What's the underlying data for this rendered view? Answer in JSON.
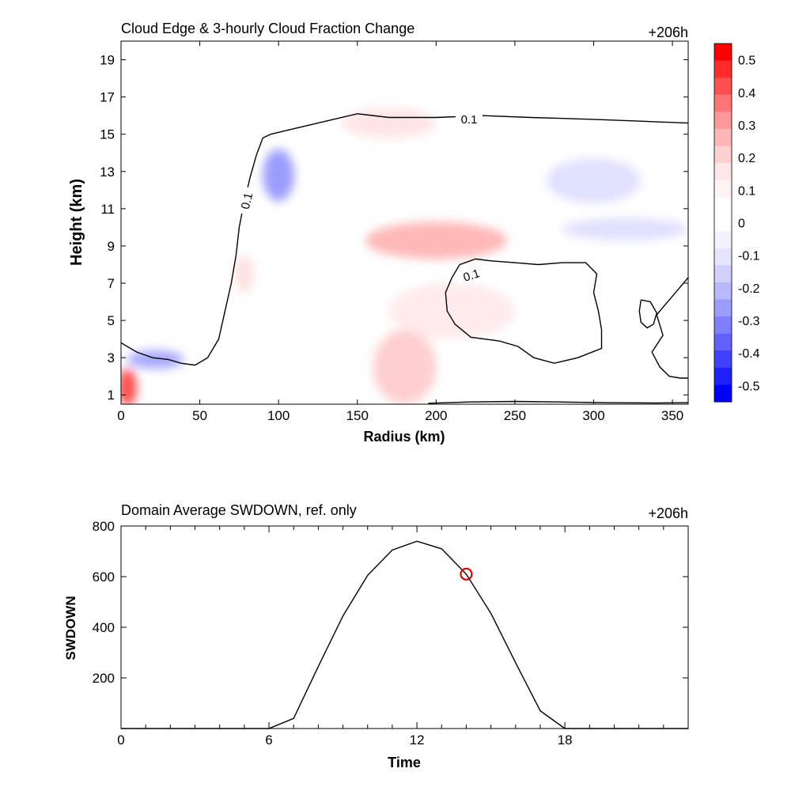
{
  "chart_data": [
    {
      "type": "heatmap",
      "title": "Cloud Edge & 3-hourly Cloud Fraction Change",
      "time_label": "+206h",
      "xlabel": "Radius (km)",
      "ylabel": "Height (km)",
      "xlim": [
        0,
        360
      ],
      "ylim": [
        0.5,
        20
      ],
      "xticks": [
        "0",
        "50",
        "100",
        "150",
        "200",
        "250",
        "300",
        "350"
      ],
      "xtick_values": [
        0,
        50,
        100,
        150,
        200,
        250,
        300,
        350
      ],
      "yticks": [
        "1",
        "3",
        "5",
        "7",
        "9",
        "11",
        "13",
        "15",
        "17",
        "19"
      ],
      "ytick_values": [
        1,
        3,
        5,
        7,
        9,
        11,
        13,
        15,
        17,
        19
      ],
      "colorbar": {
        "labels": [
          "0.5",
          "0.4",
          "0.3",
          "0.2",
          "0.1",
          "0",
          "-0.1",
          "-0.2",
          "-0.3",
          "-0.4",
          "-0.5"
        ],
        "range": [
          -0.55,
          0.55
        ],
        "colors_top_to_bottom": [
          "#ff0000",
          "#ff2a2a",
          "#ff5050",
          "#ff7474",
          "#ff9898",
          "#ffb6b6",
          "#ffd0d0",
          "#ffe6e6",
          "#fff3f3",
          "#ffffff",
          "#ffffff",
          "#f3f3ff",
          "#e4e4ff",
          "#d0d0ff",
          "#b8b8ff",
          "#9c9cff",
          "#7e7eff",
          "#6060ff",
          "#4040ff",
          "#2020ff",
          "#0000ff"
        ]
      },
      "anomalies": [
        {
          "x": 4,
          "y": 1.4,
          "rx": 6,
          "ry": 1.0,
          "value": 0.45
        },
        {
          "x": 22,
          "y": 2.9,
          "rx": 18,
          "ry": 0.5,
          "value": -0.22
        },
        {
          "x": 100,
          "y": 12.8,
          "rx": 10,
          "ry": 1.4,
          "value": -0.25
        },
        {
          "x": 200,
          "y": 9.3,
          "rx": 45,
          "ry": 1.0,
          "value": 0.18
        },
        {
          "x": 170,
          "y": 15.6,
          "rx": 30,
          "ry": 0.8,
          "value": 0.07
        },
        {
          "x": 180,
          "y": 2.5,
          "rx": 20,
          "ry": 2.0,
          "value": 0.12
        },
        {
          "x": 300,
          "y": 12.5,
          "rx": 30,
          "ry": 1.2,
          "value": -0.08
        },
        {
          "x": 320,
          "y": 9.9,
          "rx": 40,
          "ry": 0.6,
          "value": -0.08
        },
        {
          "x": 78,
          "y": 7.5,
          "rx": 6,
          "ry": 1.0,
          "value": 0.08
        },
        {
          "x": 210,
          "y": 5.5,
          "rx": 40,
          "ry": 1.5,
          "value": 0.05
        }
      ],
      "contour_level": "0.1",
      "contours": [
        {
          "name": "cloud-edge-main",
          "level": 0.1,
          "points": [
            [
              0,
              3.8
            ],
            [
              10,
              3.3
            ],
            [
              20,
              3.0
            ],
            [
              30,
              2.9
            ],
            [
              38,
              2.7
            ],
            [
              47,
              2.6
            ],
            [
              55,
              3.0
            ],
            [
              62,
              4.0
            ],
            [
              66,
              5.5
            ],
            [
              70,
              7.0
            ],
            [
              73,
              8.5
            ],
            [
              75,
              10.0
            ],
            [
              78,
              11.3
            ],
            [
              82,
              12.7
            ],
            [
              86,
              13.9
            ],
            [
              90,
              14.8
            ],
            [
              95,
              15.0
            ],
            [
              110,
              15.3
            ],
            [
              130,
              15.7
            ],
            [
              150,
              16.1
            ],
            [
              170,
              15.9
            ],
            [
              200,
              15.9
            ],
            [
              230,
              16.0
            ],
            [
              260,
              15.9
            ],
            [
              300,
              15.8
            ],
            [
              330,
              15.7
            ],
            [
              360,
              15.6
            ]
          ]
        },
        {
          "name": "cloud-edge-lower-region",
          "level": 0.1,
          "points": [
            [
              215,
              8.0
            ],
            [
              225,
              8.3
            ],
            [
              235,
              8.2
            ],
            [
              250,
              8.1
            ],
            [
              265,
              8.0
            ],
            [
              280,
              8.1
            ],
            [
              295,
              8.1
            ],
            [
              302,
              7.5
            ],
            [
              300,
              6.5
            ],
            [
              303,
              5.5
            ],
            [
              305,
              4.5
            ],
            [
              305,
              3.5
            ],
            [
              290,
              3.0
            ],
            [
              275,
              2.7
            ],
            [
              262,
              3.0
            ],
            [
              252,
              3.6
            ],
            [
              240,
              3.9
            ],
            [
              222,
              4.1
            ],
            [
              212,
              4.8
            ],
            [
              207,
              5.5
            ],
            [
              206,
              6.5
            ],
            [
              210,
              7.3
            ],
            [
              215,
              8.0
            ]
          ]
        },
        {
          "name": "cloud-edge-small-ring",
          "level": 0.1,
          "points": [
            [
              330,
              6.1
            ],
            [
              336,
              6.0
            ],
            [
              340,
              5.4
            ],
            [
              338,
              4.8
            ],
            [
              334,
              4.6
            ],
            [
              330,
              4.9
            ],
            [
              329,
              5.5
            ],
            [
              330,
              6.1
            ]
          ]
        },
        {
          "name": "cloud-edge-right",
          "level": 0.1,
          "points": [
            [
              360,
              7.3
            ],
            [
              352,
              6.5
            ],
            [
              345,
              5.8
            ],
            [
              340,
              5.3
            ],
            [
              344,
              4.2
            ],
            [
              337,
              3.3
            ],
            [
              342,
              2.5
            ],
            [
              348,
              2.0
            ],
            [
              355,
              1.9
            ],
            [
              360,
              1.9
            ]
          ]
        },
        {
          "name": "cloud-edge-bottom",
          "level": 0.1,
          "points": [
            [
              195,
              0.55
            ],
            [
              220,
              0.62
            ],
            [
              250,
              0.65
            ],
            [
              280,
              0.62
            ],
            [
              310,
              0.58
            ],
            [
              340,
              0.57
            ],
            [
              360,
              0.58
            ]
          ]
        }
      ]
    },
    {
      "type": "line",
      "title": "Domain Average SWDOWN, ref. only",
      "time_label": "+206h",
      "xlabel": "Time",
      "ylabel": "SWDOWN",
      "xlim": [
        0,
        23
      ],
      "ylim": [
        0,
        800
      ],
      "xticks": [
        "0",
        "6",
        "12",
        "18"
      ],
      "xtick_values": [
        0,
        6,
        12,
        18
      ],
      "yticks": [
        "200",
        "400",
        "600",
        "800"
      ],
      "ytick_values": [
        200,
        400,
        600,
        800
      ],
      "x": [
        0,
        1,
        2,
        3,
        4,
        5,
        6,
        7,
        8,
        9,
        10,
        11,
        12,
        13,
        14,
        15,
        16,
        17,
        18,
        19,
        20,
        21,
        22,
        23
      ],
      "values": [
        0,
        0,
        0,
        0,
        0,
        0,
        0,
        40,
        245,
        445,
        605,
        705,
        740,
        710,
        610,
        455,
        260,
        70,
        0,
        0,
        0,
        0,
        0,
        0
      ],
      "marker": {
        "x": 14,
        "y": 610,
        "color": "#e00000"
      }
    }
  ]
}
